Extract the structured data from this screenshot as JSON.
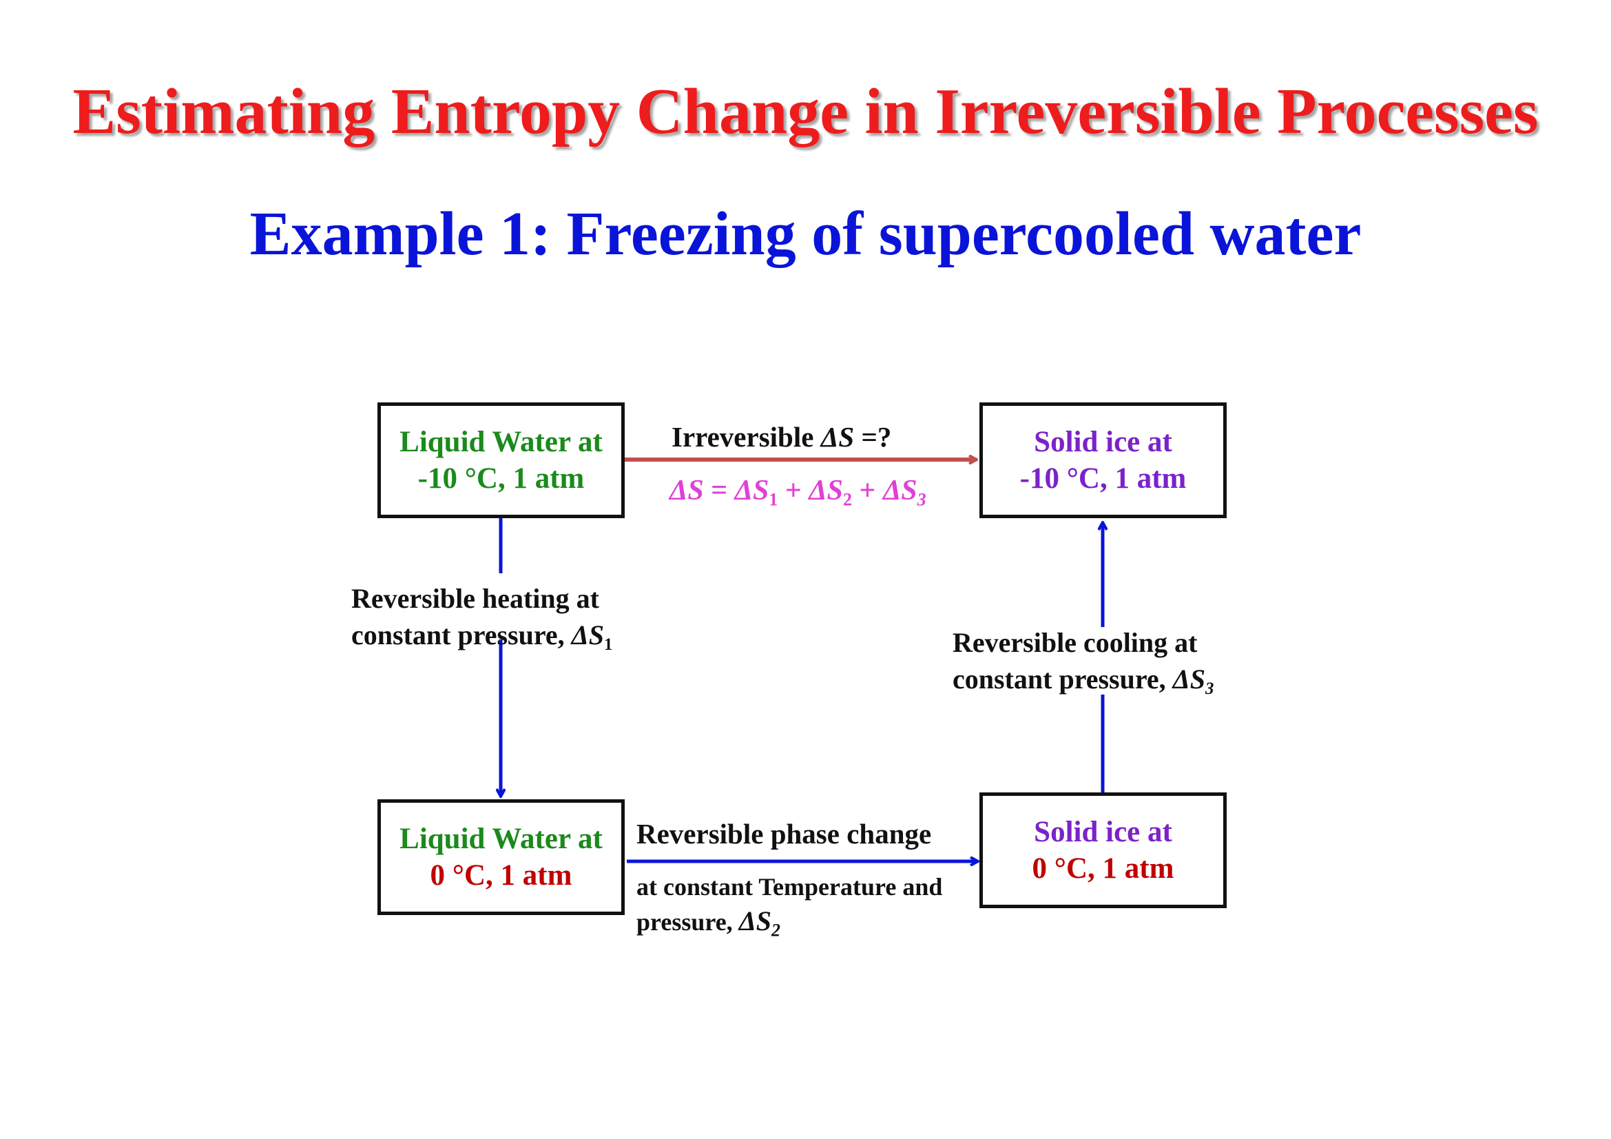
{
  "title": "Estimating Entropy Change in Irreversible Processes",
  "subtitle": "Example 1: Freezing of supercooled water",
  "boxes": {
    "liquid_minus10": {
      "line1": "Liquid Water at",
      "line2": "-10 °C, 1 atm"
    },
    "solid_minus10": {
      "line1": "Solid ice at",
      "line2": "-10 °C, 1 atm"
    },
    "liquid_0": {
      "line1": "Liquid Water at",
      "line2": "0 °C, 1 atm"
    },
    "solid_0": {
      "line1": "Solid ice at",
      "line2": "0 °C, 1 atm"
    }
  },
  "labels": {
    "irreversible_prefix": "Irreversible ",
    "irreversible_delta": "ΔS",
    "irreversible_suffix": " =?",
    "sum_lhs": "ΔS",
    "sum_eq": " = ",
    "sum_t1": "ΔS",
    "sum_s1": "1",
    "sum_plus1": " + ",
    "sum_t2": "ΔS",
    "sum_s2": "2",
    "sum_plus2": " + ",
    "sum_t3": "ΔS",
    "sum_s3": "3",
    "heating_line1": "Reversible heating at",
    "heating_line2_prefix": "constant pressure, ",
    "heating_delta": "ΔS",
    "heating_sub": "1",
    "cooling_line1": "Reversible cooling at",
    "cooling_line2_prefix": "constant pressure, ",
    "cooling_delta": "ΔS",
    "cooling_sub": "3",
    "phase_line1": "Reversible phase change",
    "phase_line2": "at constant Temperature  and",
    "phase_line3_prefix": "pressure,  ",
    "phase_delta": "ΔS",
    "phase_sub": "2"
  },
  "colors": {
    "title": "#ee1c1c",
    "subtitle": "#0a14d8",
    "irreversible_arrow": "#c0504d",
    "reversible_arrow": "#0a14d8",
    "sum_text": "#e23fd6"
  }
}
